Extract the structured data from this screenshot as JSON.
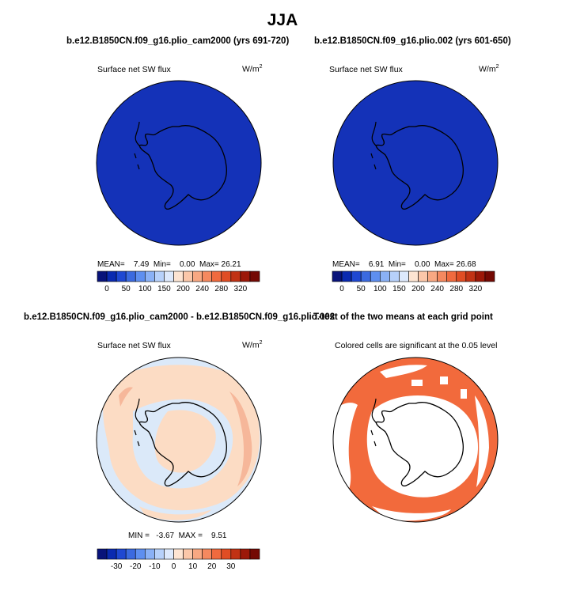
{
  "title": "JJA",
  "colors": {
    "ocean_base": "#1432b8",
    "continent_outline": "#000000",
    "diff_background": "#dbe9f9",
    "diff_positive": "#fcdcc4",
    "diff_positive_strong": "#f6b79a",
    "significant": "#f26a3c"
  },
  "panels": [
    {
      "title": "b.e12.B1850CN.f09_g16.plio_cam2000 (yrs 691-720)",
      "field": "Surface net SW flux",
      "units": "W/m",
      "units_sup": "2",
      "stats": {
        "mean_label": "MEAN=",
        "mean": "7.49",
        "min_label": "Min=",
        "min": "0.00",
        "max_label": "Max=",
        "max": "26.21"
      }
    },
    {
      "title": "b.e12.B1850CN.f09_g16.plio.002 (yrs 601-650)",
      "field": "Surface net SW flux",
      "units": "W/m",
      "units_sup": "2",
      "stats": {
        "mean_label": "MEAN=",
        "mean": "6.91",
        "min_label": "Min=",
        "min": "0.00",
        "max_label": "Max=",
        "max": "26.68"
      }
    },
    {
      "title": "b.e12.B1850CN.f09_g16.plio_cam2000 - b.e12.B1850CN.f09_g16.plio.002",
      "field": "Surface net SW flux",
      "units": "W/m",
      "units_sup": "2",
      "stats_line": "MIN =   -3.67  MAX =    9.51"
    },
    {
      "title": "T-test of the two means at each grid point",
      "subtitle": "Colored cells are significant at the 0.05 level"
    }
  ],
  "colorbars": {
    "absolute": {
      "colors": [
        "#08137a",
        "#0a2ab0",
        "#1f48d2",
        "#3b6ae0",
        "#5e8ff0",
        "#8ab1f6",
        "#b7d1fa",
        "#dde9fc",
        "#fde4d2",
        "#fbc7a9",
        "#f8a882",
        "#f5895f",
        "#f06a3e",
        "#e04d24",
        "#c13214",
        "#9c1808",
        "#740903"
      ],
      "labels": [
        "0",
        "50",
        "100",
        "150",
        "200",
        "240",
        "280",
        "320"
      ]
    },
    "difference": {
      "colors": [
        "#08137a",
        "#0a2ab0",
        "#1f48d2",
        "#3b6ae0",
        "#5e8ff0",
        "#8ab1f6",
        "#b7d1fa",
        "#dde9fc",
        "#fde4d2",
        "#fbc7a9",
        "#f8a882",
        "#f5895f",
        "#f06a3e",
        "#e04d24",
        "#c13214",
        "#9c1808",
        "#740903"
      ],
      "labels": [
        "-30",
        "-20",
        "-10",
        "0",
        "10",
        "20",
        "30"
      ]
    }
  }
}
